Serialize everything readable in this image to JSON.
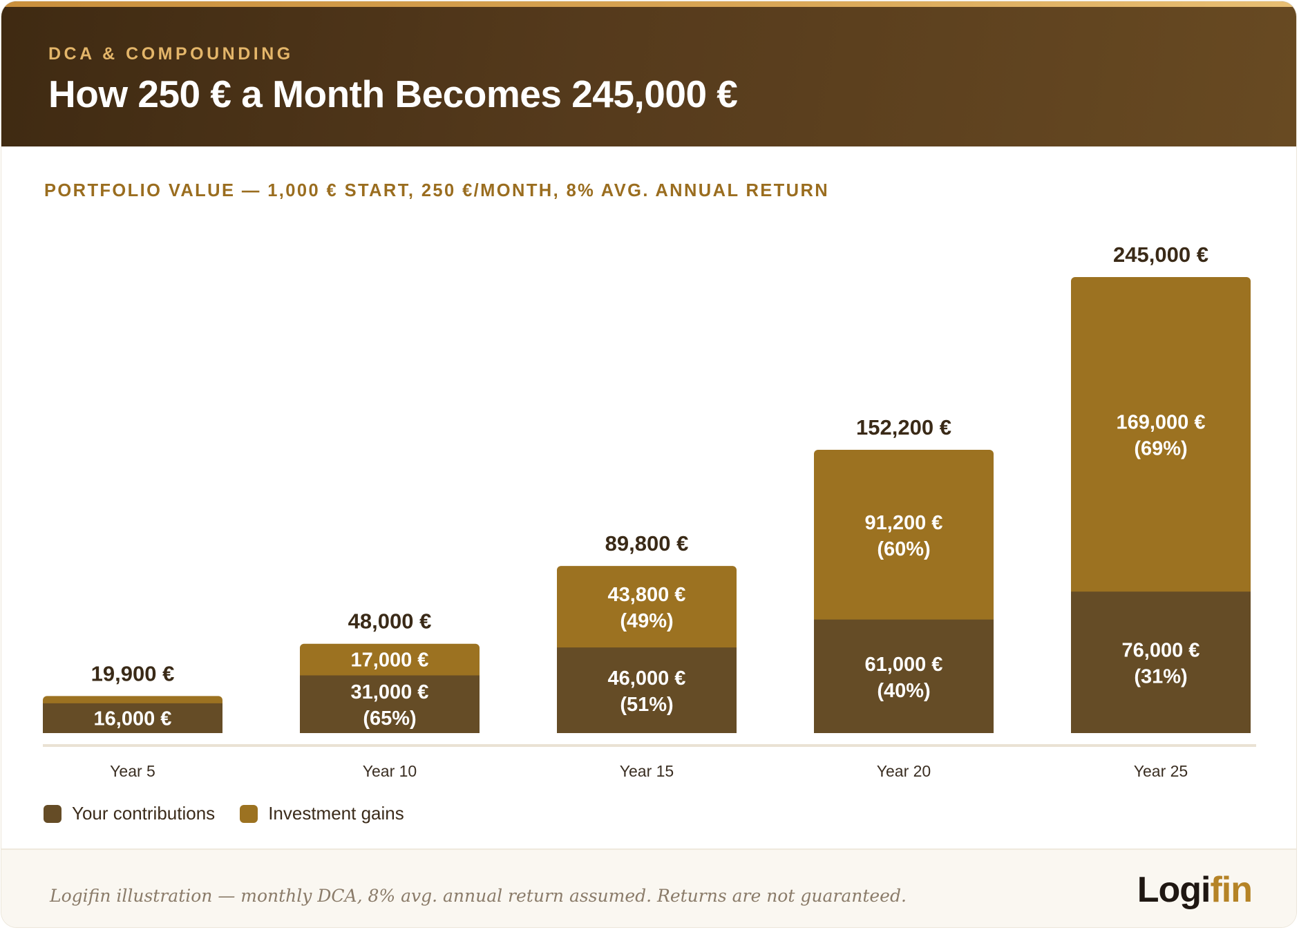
{
  "header": {
    "eyebrow": "DCA & COMPOUNDING",
    "title": "How 250 € a Month Becomes 245,000 €"
  },
  "colors": {
    "contributions": "#654c26",
    "gains": "#9c7221",
    "header_accent": "#e4b66a",
    "subtitle": "#9a6d1f"
  },
  "chart_data": {
    "type": "bar",
    "stacked": true,
    "title": "PORTFOLIO VALUE — 1,000 € START, 250 €/MONTH, 8% AVG. ANNUAL RETURN",
    "categories": [
      "Year 5",
      "Year 10",
      "Year 15",
      "Year 20",
      "Year 25"
    ],
    "totals": [
      19900,
      48000,
      89800,
      152200,
      245000
    ],
    "total_labels": [
      "19,900 €",
      "48,000 €",
      "89,800 €",
      "152,200 €",
      "245,000 €"
    ],
    "ylim": [
      0,
      245000
    ],
    "grid": false,
    "legend_position": "bottom-left",
    "series": [
      {
        "name": "Your contributions",
        "values": [
          16000,
          31000,
          46000,
          61000,
          76000
        ],
        "labels": [
          "16,000 €",
          "31,000 €",
          "46,000 €",
          "61,000 €",
          "76,000 €"
        ],
        "pct_labels": [
          "",
          "(65%)",
          "(51%)",
          "(40%)",
          "(31%)"
        ]
      },
      {
        "name": "Investment gains",
        "values": [
          3900,
          17000,
          43800,
          91200,
          169000
        ],
        "labels": [
          "",
          "17,000 €",
          "43,800 €",
          "91,200 €",
          "169,000 €"
        ],
        "pct_labels": [
          "",
          "",
          "(49%)",
          "(60%)",
          "(69%)"
        ]
      }
    ]
  },
  "legend": {
    "contributions_label": "Your contributions",
    "gains_label": "Investment gains"
  },
  "footer": {
    "note": "Logifin illustration — monthly DCA, 8% avg. annual return assumed. Returns are not guaranteed.",
    "logo_main": "Logi",
    "logo_accent": "fin"
  }
}
